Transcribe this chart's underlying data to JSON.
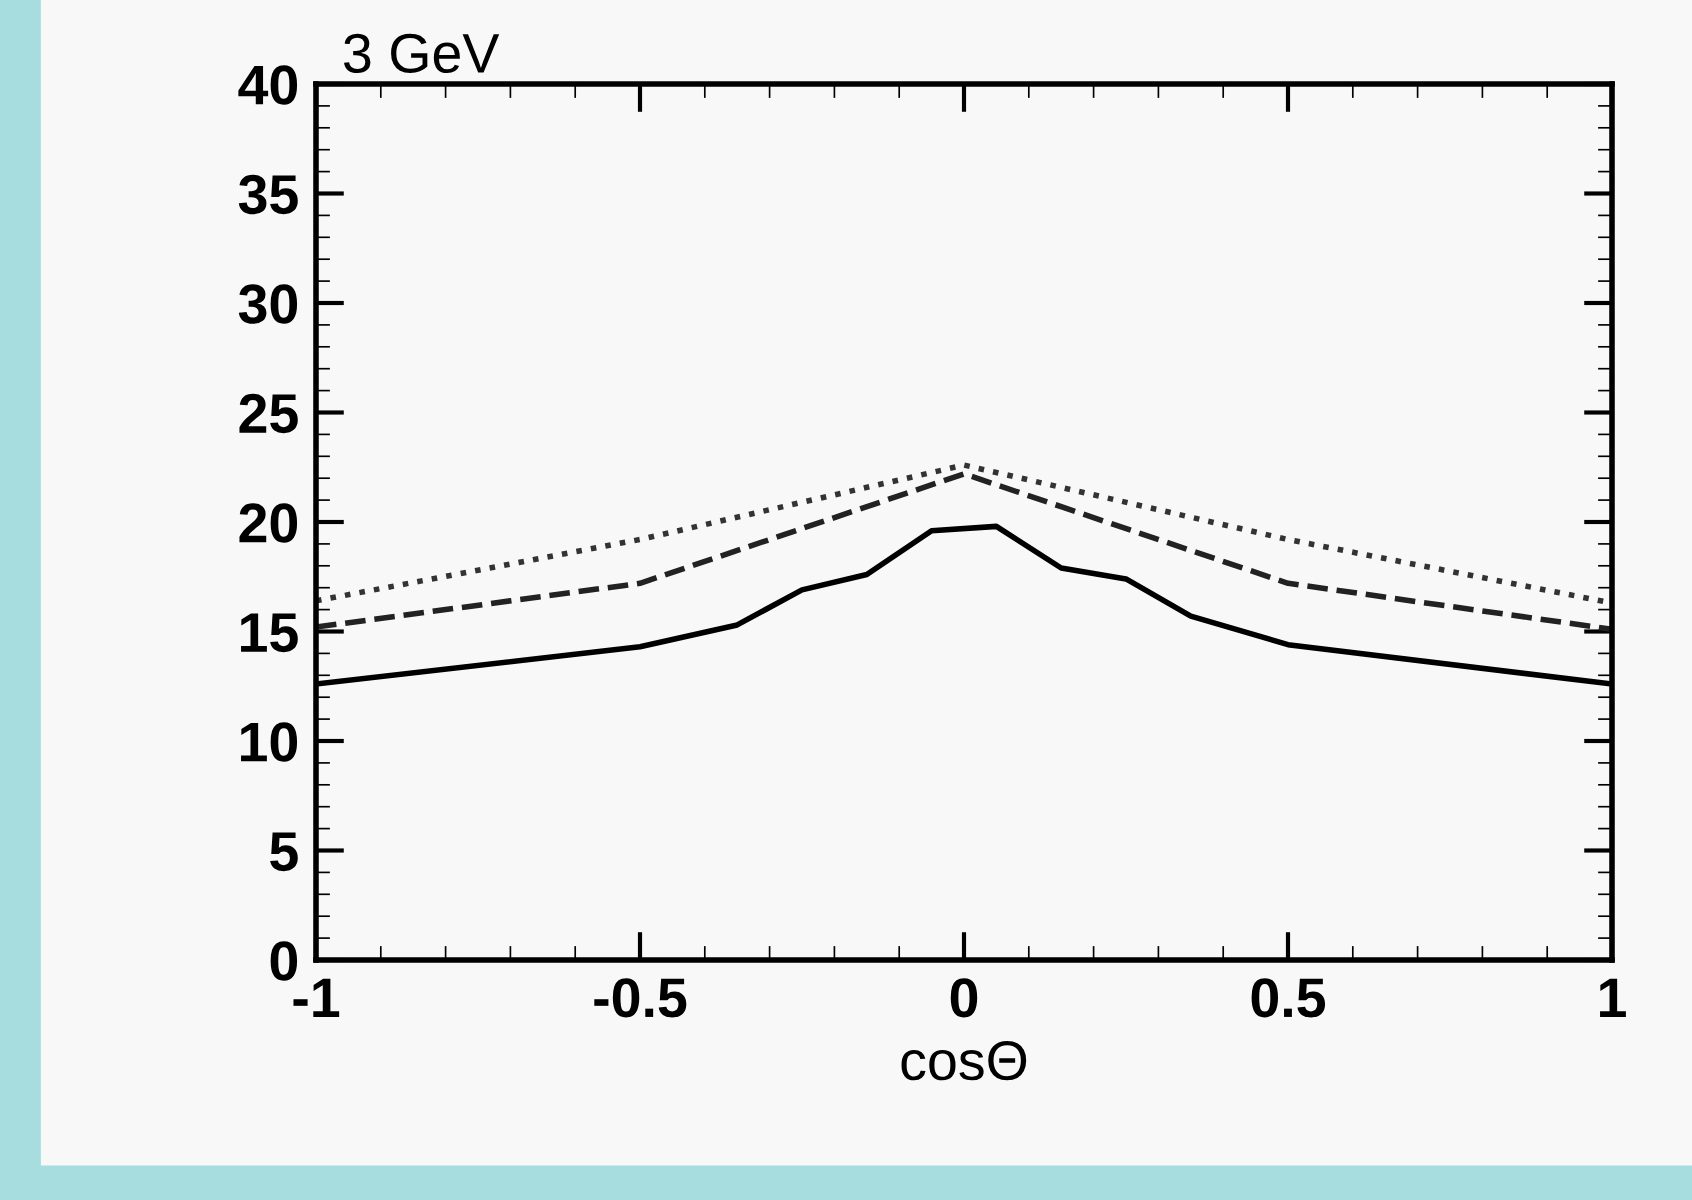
{
  "chart_data": {
    "type": "line",
    "annotations": [
      "3 GeV"
    ],
    "xlabel": "cosΘ",
    "x": [
      -1,
      -0.5,
      -0.35,
      -0.25,
      -0.15,
      -0.05,
      0.05,
      0.15,
      0.25,
      0.35,
      0.5,
      1
    ],
    "series": [
      {
        "color": "#000000",
        "line_style": "solid",
        "values": [
          12.6,
          14.3,
          15.3,
          16.9,
          17.6,
          19.6,
          19.8,
          17.9,
          17.4,
          15.7,
          14.4,
          12.6
        ]
      },
      {
        "color": "#222222",
        "line_style": "dashed",
        "x": [
          -1,
          -0.5,
          0,
          0.5,
          1
        ],
        "values": [
          15.2,
          17.2,
          22.2,
          17.2,
          15.1
        ]
      },
      {
        "color": "#333333",
        "line_style": "dotted",
        "x": [
          -1,
          -0.5,
          0,
          0.5,
          1
        ],
        "values": [
          16.4,
          19.2,
          22.6,
          19.2,
          16.3
        ]
      }
    ],
    "xlim": [
      -1,
      1
    ],
    "ylim": [
      0,
      40
    ],
    "xticks": [
      -1,
      -0.5,
      0,
      0.5,
      1
    ],
    "yticks": [
      0,
      5,
      10,
      15,
      20,
      25,
      30,
      35,
      40
    ],
    "grid": false,
    "marker": "none"
  }
}
